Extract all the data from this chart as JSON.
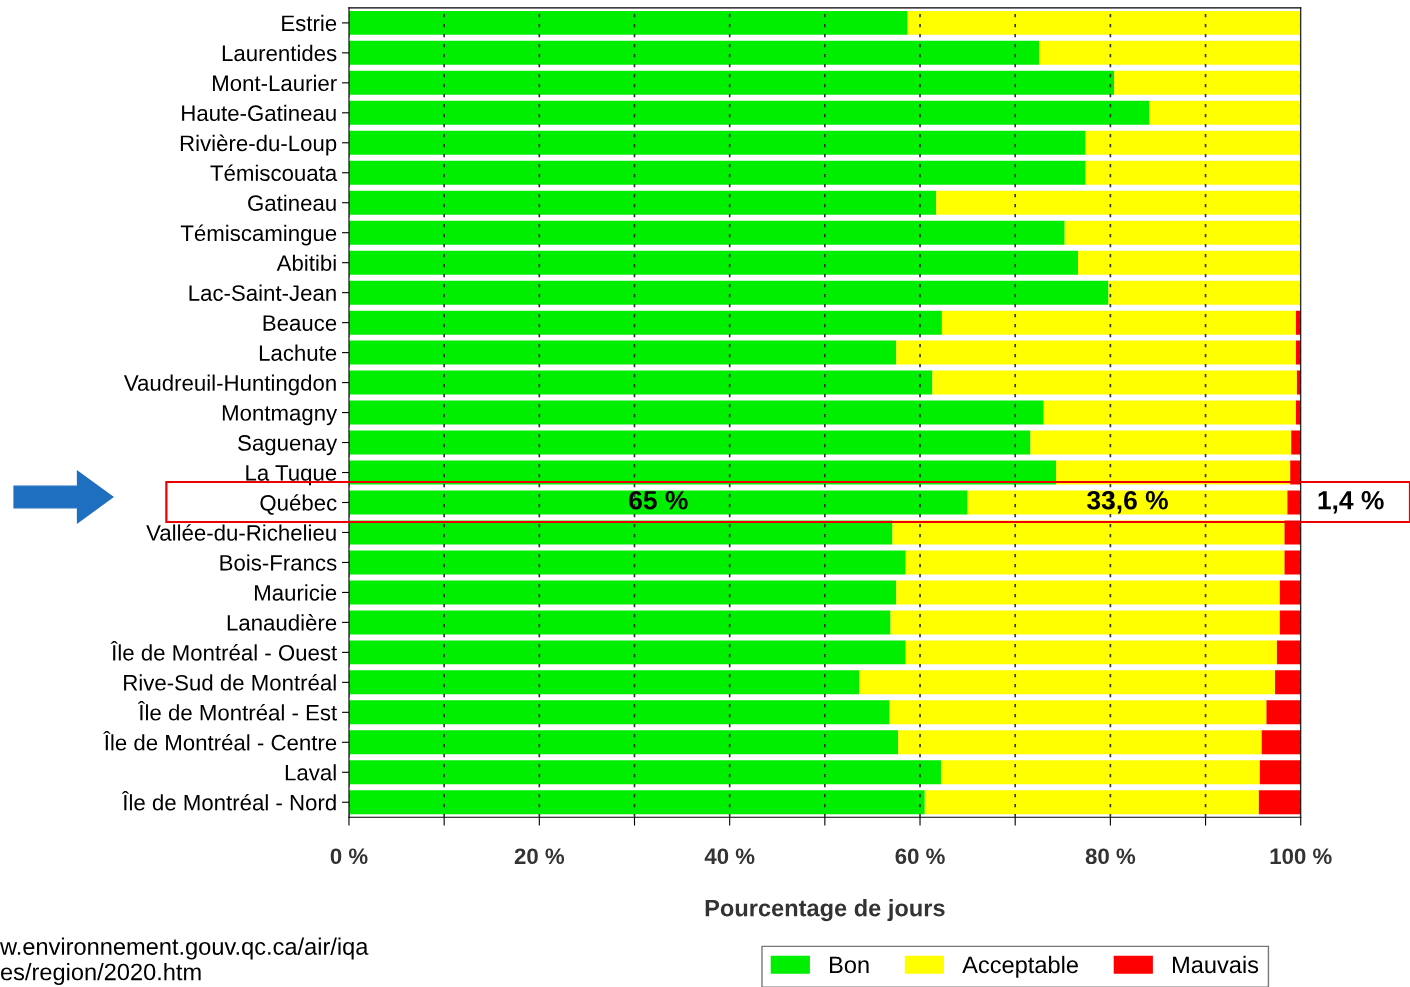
{
  "chart_data": {
    "type": "bar",
    "orientation": "horizontal",
    "stacked": true,
    "categories": [
      "Estrie",
      "Laurentides",
      "Mont-Laurier",
      "Haute-Gatineau",
      "Rivière-du-Loup",
      "Témiscouata",
      "Gatineau",
      "Témiscamingue",
      "Abitibi",
      "Lac-Saint-Jean",
      "Beauce",
      "Lachute",
      "Vaudreuil-Huntingdon",
      "Montmagny",
      "Saguenay",
      "La Tuque",
      "Québec",
      "Vallée-du-Richelieu",
      "Bois-Francs",
      "Mauricie",
      "Lanaudière",
      "Île de Montréal - Ouest",
      "Rive-Sud de Montréal",
      "Île de Montréal - Est",
      "Île de Montréal - Centre",
      "Laval",
      "Île de Montréal - Nord"
    ],
    "series": [
      {
        "name": "Bon",
        "color": "#00ee00",
        "values": [
          58.7,
          72.5,
          80.4,
          84.1,
          77.4,
          77.4,
          61.7,
          75.2,
          76.6,
          79.8,
          62.3,
          57.5,
          61.3,
          73.0,
          71.6,
          74.3,
          65,
          57.1,
          58.5,
          57.5,
          56.9,
          58.5,
          53.6,
          56.8,
          57.7,
          62.2,
          60.5
        ],
        "value_labels": [
          null,
          null,
          null,
          null,
          null,
          null,
          null,
          null,
          null,
          null,
          null,
          null,
          null,
          null,
          null,
          null,
          "65 %",
          null,
          null,
          null,
          null,
          null,
          null,
          null,
          null,
          null,
          null
        ]
      },
      {
        "name": "Acceptable",
        "color": "#ffff00",
        "values": [
          41.3,
          27.5,
          19.6,
          15.9,
          22.6,
          22.6,
          38.3,
          24.8,
          23.4,
          20.2,
          37.2,
          42.0,
          38.3,
          26.5,
          27.4,
          24.6,
          33.6,
          41.2,
          39.8,
          40.3,
          40.9,
          39.0,
          43.7,
          39.6,
          38.2,
          33.5,
          35.1
        ],
        "value_labels": [
          null,
          null,
          null,
          null,
          null,
          null,
          null,
          null,
          null,
          null,
          null,
          null,
          null,
          null,
          null,
          null,
          "33,6 %",
          null,
          null,
          null,
          null,
          null,
          null,
          null,
          null,
          null,
          null
        ]
      },
      {
        "name": "Mauvais",
        "color": "#ff0000",
        "values": [
          0,
          0,
          0,
          0,
          0,
          0,
          0,
          0,
          0,
          0,
          0.5,
          0.5,
          0.4,
          0.5,
          1.0,
          1.1,
          1.4,
          1.7,
          1.7,
          2.2,
          2.2,
          2.5,
          2.7,
          3.6,
          4.1,
          4.3,
          4.4
        ],
        "value_labels": [
          null,
          null,
          null,
          null,
          null,
          null,
          null,
          null,
          null,
          null,
          null,
          null,
          null,
          null,
          null,
          null,
          "1,4 %",
          null,
          null,
          null,
          null,
          null,
          null,
          null,
          null,
          null,
          null
        ]
      }
    ],
    "xlim": [
      0,
      100
    ],
    "xticks": [
      {
        "value": 0,
        "label": "0 %"
      },
      {
        "value": 10,
        "label": null
      },
      {
        "value": 20,
        "label": "20 %"
      },
      {
        "value": 30,
        "label": null
      },
      {
        "value": 40,
        "label": "40 %"
      },
      {
        "value": 50,
        "label": null
      },
      {
        "value": 60,
        "label": "60 %"
      },
      {
        "value": 70,
        "label": null
      },
      {
        "value": 80,
        "label": "80 %"
      },
      {
        "value": 90,
        "label": null
      },
      {
        "value": 100,
        "label": "100 %"
      }
    ],
    "xlabel": "Pourcentage de jours",
    "grid": "x",
    "legend": "bottom",
    "annotations": [
      "w.environnement.gouv.qc.ca/air/iqa\nes/region/2020.htm"
    ]
  }
}
